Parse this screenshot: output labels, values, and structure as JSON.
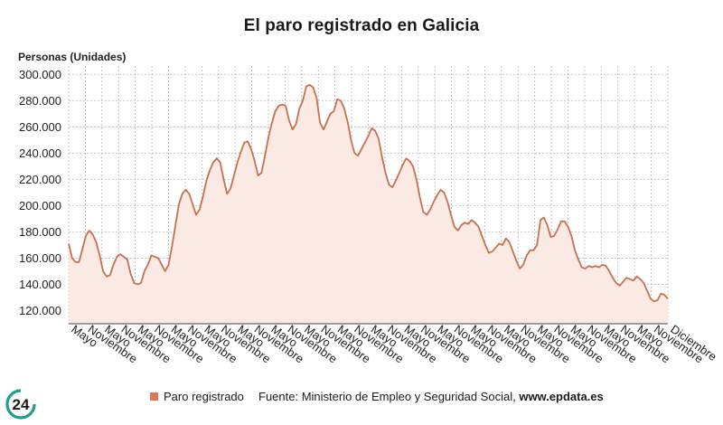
{
  "title": "El paro registrado en Galicia",
  "legend_label": "Paro registrado",
  "source_prefix": "Fuente: Ministerio de Empleo y Seguridad Social, ",
  "source_site": "www.epdata.es",
  "logo_text": "24",
  "colors": {
    "line": "#c8704d",
    "fill": "#fbe9e4",
    "grid": "#b8b8b8",
    "legend": "#d9785a"
  },
  "chart_data": {
    "type": "area",
    "title": "El paro registrado en Galicia",
    "ylabel": "Personas (Unidades)",
    "ylim": [
      110000,
      305000
    ],
    "yticks": [
      120000,
      140000,
      160000,
      180000,
      200000,
      220000,
      240000,
      260000,
      280000,
      300000
    ],
    "ytick_labels": [
      "120.000",
      "140.000",
      "160.000",
      "180.000",
      "200.000",
      "220.000",
      "240.000",
      "260.000",
      "280.000",
      "300.000"
    ],
    "xtick_labels": [
      "Mayo",
      "Noviembre",
      "Mayo",
      "Noviembre",
      "Mayo",
      "Noviembre",
      "Mayo",
      "Noviembre",
      "Mayo",
      "Noviembre",
      "Mayo",
      "Noviembre",
      "Mayo",
      "Noviembre",
      "Mayo",
      "Noviembre",
      "Mayo",
      "Noviembre",
      "Mayo",
      "Noviembre",
      "Mayo",
      "Noviembre",
      "Mayo",
      "Noviembre",
      "Mayo",
      "Noviembre",
      "Mayo",
      "Noviembre",
      "Mayo",
      "Noviembre",
      "Mayo",
      "Noviembre",
      "Mayo",
      "Noviembre",
      "Mayo",
      "Noviembre",
      "Diciembre"
    ],
    "grid": true,
    "legend": "bottom",
    "series": [
      {
        "name": "Paro registrado",
        "values": [
          171000,
          160000,
          157000,
          157000,
          167000,
          177000,
          181000,
          178000,
          172000,
          162000,
          150000,
          146000,
          147000,
          155000,
          161000,
          163000,
          161000,
          159000,
          148000,
          141000,
          140000,
          141000,
          150000,
          155000,
          162000,
          161000,
          160000,
          155000,
          150000,
          155000,
          169000,
          185000,
          201000,
          209000,
          212000,
          209000,
          201000,
          193000,
          197000,
          207000,
          219000,
          227000,
          233000,
          236000,
          233000,
          220000,
          209000,
          213000,
          223000,
          233000,
          241000,
          248000,
          249000,
          243000,
          234000,
          223000,
          225000,
          238000,
          252000,
          263000,
          272000,
          276000,
          277000,
          276000,
          265000,
          258000,
          262000,
          274000,
          280000,
          291000,
          292000,
          290000,
          282000,
          263000,
          258000,
          264000,
          270000,
          272000,
          281000,
          280000,
          274000,
          264000,
          250000,
          240000,
          238000,
          243000,
          248000,
          253000,
          259000,
          257000,
          251000,
          237000,
          225000,
          216000,
          214000,
          219000,
          225000,
          231000,
          236000,
          234000,
          230000,
          220000,
          206000,
          195000,
          193000,
          197000,
          203000,
          208000,
          212000,
          210000,
          203000,
          193000,
          184000,
          181000,
          185000,
          187000,
          186000,
          189000,
          187000,
          184000,
          177000,
          170000,
          164000,
          165000,
          168000,
          171000,
          170000,
          175000,
          172000,
          165000,
          158000,
          152000,
          155000,
          162000,
          166000,
          166000,
          170000,
          189000,
          191000,
          185000,
          176000,
          177000,
          182000,
          188000,
          188000,
          184000,
          177000,
          166000,
          159000,
          153000,
          152000,
          154000,
          153000,
          154000,
          153000,
          155000,
          154000,
          150000,
          145000,
          141000,
          139000,
          142000,
          145000,
          144000,
          143000,
          146000,
          144000,
          141000,
          135000,
          129000,
          127000,
          128000,
          133000,
          132000,
          129000
        ]
      }
    ]
  }
}
